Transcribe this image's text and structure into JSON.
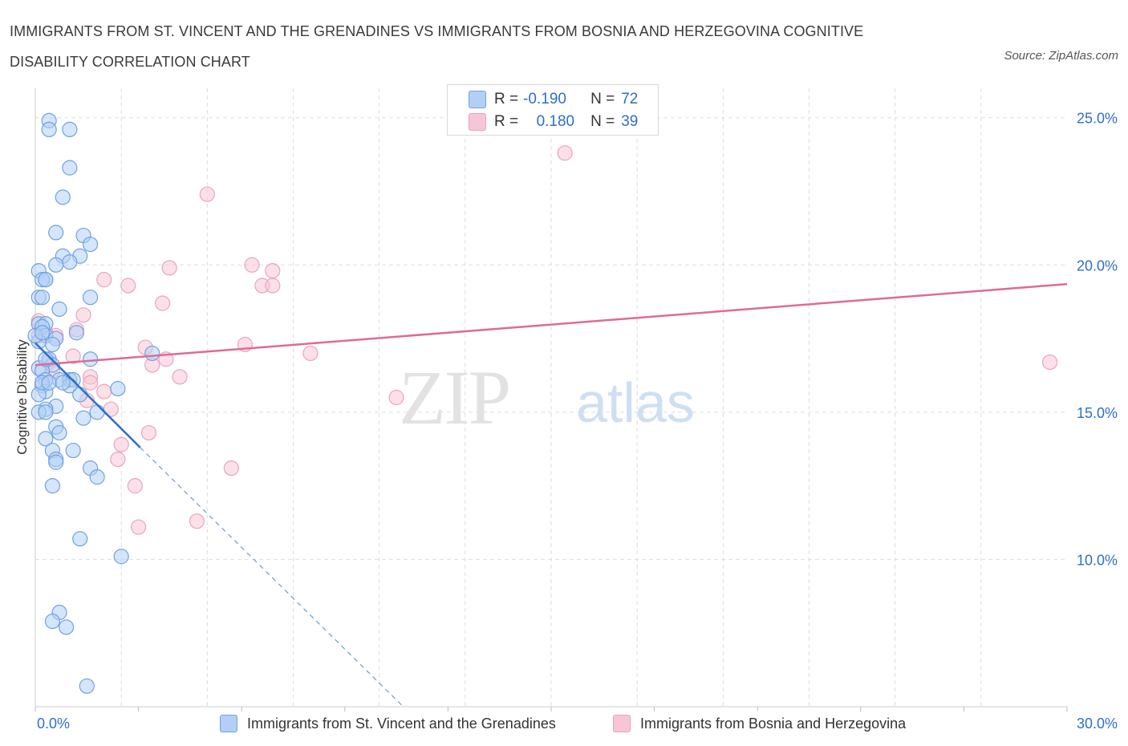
{
  "title": "IMMIGRANTS FROM ST. VINCENT AND THE GRENADINES VS IMMIGRANTS FROM BOSNIA AND HERZEGOVINA COGNITIVE DISABILITY CORRELATION CHART",
  "source": "Source: ZipAtlas.com",
  "watermark": {
    "zip": "ZIP",
    "atlas": "atlas"
  },
  "legend": {
    "r_label": "R =",
    "n_label": "N =",
    "series1": {
      "r": "-0.190",
      "n": "72"
    },
    "series2": {
      "r": "0.180",
      "n": "39"
    }
  },
  "colors": {
    "blue_fill": "#b3cff5",
    "blue_stroke": "#6fa2e0",
    "blue_line": "#2e6fc8",
    "pink_fill": "#f7c6d6",
    "pink_stroke": "#eba3bd",
    "pink_line": "#e06a96",
    "tick_text": "#2e6fc8",
    "grid": "#dddddd"
  },
  "chart_data": {
    "type": "scatter",
    "title": "IMMIGRANTS FROM ST. VINCENT AND THE GRENADINES VS IMMIGRANTS FROM BOSNIA AND HERZEGOVINA COGNITIVE DISABILITY CORRELATION CHART",
    "xlabel": "",
    "ylabel": "Cognitive Disability",
    "xlim": [
      0,
      30
    ],
    "ylim": [
      5.0,
      26.0
    ],
    "x_tick_labels": [
      "0.0%",
      "30.0%"
    ],
    "y_ticks": [
      10,
      15,
      20,
      25
    ],
    "y_tick_labels": [
      "10.0%",
      "15.0%",
      "20.0%",
      "25.0%"
    ],
    "grid": true,
    "legend_placement": "top-center",
    "series": [
      {
        "name": "Immigrants from St. Vincent and the Grenadines",
        "color": "#6fa2e0",
        "r": -0.19,
        "n": 72,
        "trend": {
          "x": [
            0.0,
            3.05
          ],
          "y": [
            17.35,
            13.8
          ]
        },
        "trend_extension": {
          "x": [
            3.05,
            10.7
          ],
          "y": [
            13.8,
            5.0
          ]
        },
        "points": [
          [
            0.4,
            24.9
          ],
          [
            0.4,
            24.6
          ],
          [
            1.0,
            24.6
          ],
          [
            1.0,
            23.3
          ],
          [
            0.8,
            22.3
          ],
          [
            0.6,
            21.1
          ],
          [
            1.4,
            21.0
          ],
          [
            1.6,
            20.7
          ],
          [
            0.8,
            20.3
          ],
          [
            1.3,
            20.3
          ],
          [
            1.0,
            20.1
          ],
          [
            0.6,
            20.0
          ],
          [
            0.1,
            19.8
          ],
          [
            0.3,
            19.5
          ],
          [
            0.2,
            19.5
          ],
          [
            0.3,
            19.5
          ],
          [
            0.1,
            18.9
          ],
          [
            0.2,
            18.9
          ],
          [
            1.6,
            18.9
          ],
          [
            0.7,
            18.5
          ],
          [
            0.1,
            18.0
          ],
          [
            0.3,
            18.0
          ],
          [
            0.2,
            17.9
          ],
          [
            0.3,
            17.6
          ],
          [
            1.2,
            17.7
          ],
          [
            0.6,
            17.5
          ],
          [
            0.5,
            17.3
          ],
          [
            0.1,
            17.4
          ],
          [
            0.0,
            17.6
          ],
          [
            0.4,
            16.8
          ],
          [
            0.5,
            16.6
          ],
          [
            1.6,
            16.8
          ],
          [
            3.4,
            17.0
          ],
          [
            0.1,
            16.5
          ],
          [
            0.2,
            16.4
          ],
          [
            0.3,
            16.1
          ],
          [
            0.7,
            16.1
          ],
          [
            1.0,
            16.1
          ],
          [
            1.1,
            16.1
          ],
          [
            0.2,
            15.9
          ],
          [
            1.0,
            15.9
          ],
          [
            2.4,
            15.8
          ],
          [
            0.3,
            15.7
          ],
          [
            0.1,
            15.6
          ],
          [
            1.3,
            15.6
          ],
          [
            0.6,
            15.2
          ],
          [
            0.3,
            15.1
          ],
          [
            0.1,
            15.0
          ],
          [
            0.3,
            15.0
          ],
          [
            1.8,
            15.0
          ],
          [
            1.4,
            14.8
          ],
          [
            0.6,
            14.5
          ],
          [
            0.7,
            14.3
          ],
          [
            0.3,
            14.1
          ],
          [
            0.5,
            13.7
          ],
          [
            1.1,
            13.7
          ],
          [
            0.6,
            13.4
          ],
          [
            0.6,
            13.3
          ],
          [
            1.6,
            13.1
          ],
          [
            1.8,
            12.8
          ],
          [
            0.5,
            12.5
          ],
          [
            1.3,
            10.7
          ],
          [
            2.5,
            10.1
          ],
          [
            0.7,
            8.2
          ],
          [
            0.5,
            7.9
          ],
          [
            0.9,
            7.7
          ],
          [
            1.5,
            5.7
          ],
          [
            0.2,
            16.0
          ],
          [
            0.4,
            16.0
          ],
          [
            0.8,
            16.0
          ],
          [
            0.3,
            16.8
          ],
          [
            0.2,
            17.7
          ]
        ]
      },
      {
        "name": "Immigrants from Bosnia and Herzegovina",
        "color": "#eba3bd",
        "r": 0.18,
        "n": 39,
        "trend": {
          "x": [
            0.0,
            30.0
          ],
          "y": [
            16.6,
            19.35
          ]
        },
        "points": [
          [
            15.4,
            23.8
          ],
          [
            5.0,
            22.4
          ],
          [
            3.9,
            19.9
          ],
          [
            6.3,
            20.0
          ],
          [
            6.9,
            19.8
          ],
          [
            2.0,
            19.5
          ],
          [
            2.7,
            19.3
          ],
          [
            6.6,
            19.3
          ],
          [
            6.9,
            19.3
          ],
          [
            3.7,
            18.7
          ],
          [
            0.1,
            18.1
          ],
          [
            1.4,
            18.3
          ],
          [
            1.2,
            17.8
          ],
          [
            0.6,
            17.6
          ],
          [
            0.1,
            17.6
          ],
          [
            0.3,
            17.7
          ],
          [
            6.1,
            17.3
          ],
          [
            3.2,
            17.2
          ],
          [
            8.0,
            17.0
          ],
          [
            1.1,
            16.9
          ],
          [
            3.8,
            16.8
          ],
          [
            3.4,
            16.6
          ],
          [
            0.4,
            16.7
          ],
          [
            1.6,
            16.2
          ],
          [
            4.2,
            16.2
          ],
          [
            1.6,
            16.0
          ],
          [
            2.0,
            15.7
          ],
          [
            10.5,
            15.5
          ],
          [
            1.5,
            15.4
          ],
          [
            2.2,
            15.1
          ],
          [
            29.5,
            16.7
          ],
          [
            3.3,
            14.3
          ],
          [
            2.5,
            13.9
          ],
          [
            2.4,
            13.4
          ],
          [
            5.7,
            13.1
          ],
          [
            2.9,
            12.5
          ],
          [
            4.7,
            11.3
          ],
          [
            3.0,
            11.1
          ],
          [
            0.5,
            16.4
          ]
        ]
      }
    ]
  },
  "bottom_legend": {
    "series1": "Immigrants from St. Vincent and the Grenadines",
    "series2": "Immigrants from Bosnia and Herzegovina"
  }
}
